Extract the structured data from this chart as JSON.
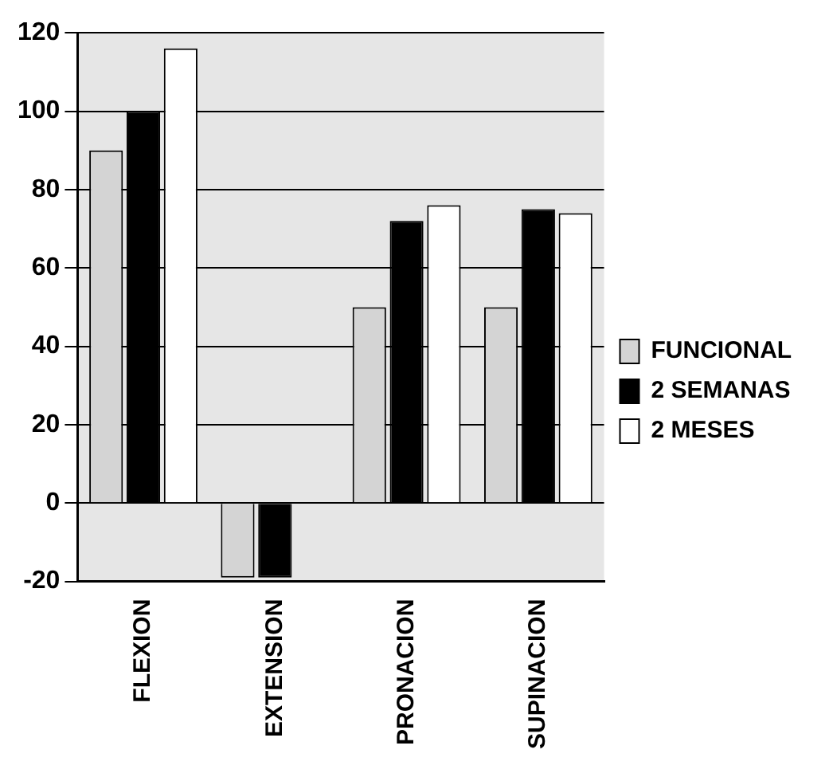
{
  "chart_data": {
    "type": "bar",
    "categories": [
      "FLEXION",
      "EXTENSION",
      "PRONACION",
      "SUPINACION"
    ],
    "series": [
      {
        "name": "FUNCIONAL",
        "color": "#d4d4d4",
        "values": [
          90,
          -19,
          50,
          50
        ]
      },
      {
        "name": "2 SEMANAS",
        "color": "#000000",
        "values": [
          100,
          -19,
          72,
          75
        ]
      },
      {
        "name": "2 MESES",
        "color": "#ffffff",
        "values": [
          116,
          0,
          76,
          74
        ]
      }
    ],
    "ylim": [
      -20,
      120
    ],
    "yticks": [
      -20,
      0,
      20,
      40,
      60,
      80,
      100,
      120
    ],
    "grid": "y",
    "legend": "right"
  }
}
